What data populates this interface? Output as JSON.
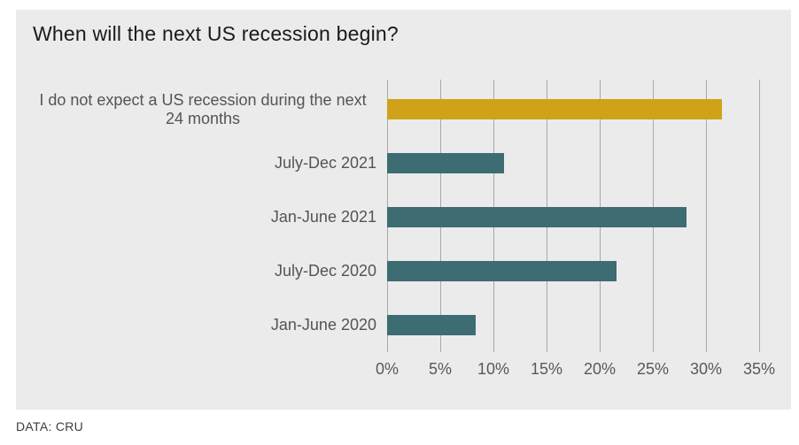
{
  "page": {
    "source_note": "DATA: CRU"
  },
  "chart_data": {
    "type": "bar",
    "orientation": "horizontal",
    "title": "When will the next US recession begin?",
    "categories": [
      "I do not expect a US recession during the next 24 months",
      "July-Dec 2021",
      "Jan-June 2021",
      "July-Dec 2020",
      "Jan-June 2020"
    ],
    "values": [
      31.5,
      11,
      28.2,
      21.6,
      8.3
    ],
    "unit": "%",
    "bar_colors": [
      "#d0a219",
      "#3d6c73",
      "#3d6c73",
      "#3d6c73",
      "#3d6c73"
    ],
    "x_ticks": [
      "0%",
      "5%",
      "10%",
      "15%",
      "20%",
      "25%",
      "30%",
      "35%"
    ],
    "x_tick_values": [
      0,
      5,
      10,
      15,
      20,
      25,
      30,
      35
    ],
    "xlim": [
      0,
      36.5
    ],
    "grid": "vertical-gridlines-on",
    "legend": "none",
    "label_align": [
      "center",
      "right",
      "right",
      "right",
      "right"
    ],
    "colors": {
      "panel_background": "#ebebeb",
      "gridline": "#a8a8a8",
      "highlight_gold": "#d0a219",
      "teal": "#3d6c73",
      "title_text": "#1a1a1a",
      "label_text": "#545454",
      "axis_text": "#595959"
    }
  }
}
